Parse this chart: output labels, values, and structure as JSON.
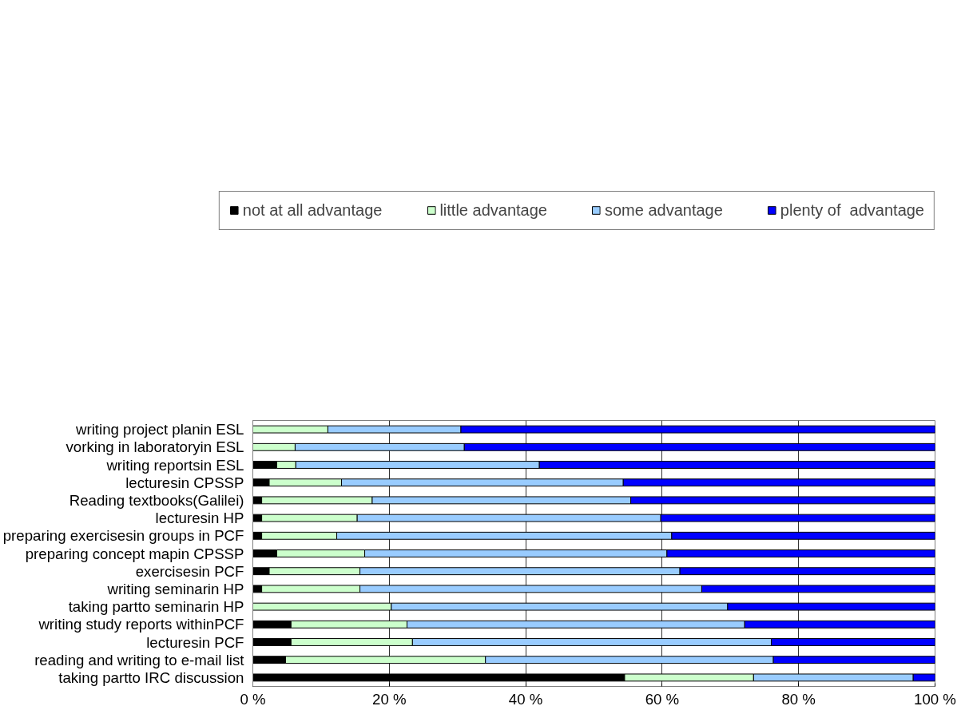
{
  "chart_data": {
    "type": "bar",
    "orientation": "horizontal",
    "stacked": true,
    "categories": [
      "writing project planin ESL",
      "vorking in laboratoryin ESL",
      "writing reportsin ESL",
      "lecturesin CPSSP",
      "Reading textbooks(Galilei)",
      "lecturesin HP",
      "preparing exercisesin groups in PCF",
      "preparing concept mapin CPSSP",
      "exercisesin PCF",
      "writing seminarin HP",
      "taking partto seminarin HP",
      "writing study reports withinPCF",
      "lecturesin PCF",
      "reading and writing to e-mail list",
      "taking partto IRC discussion"
    ],
    "series": [
      {
        "name": "not at all advantage",
        "color": "#000000",
        "values": [
          0,
          0,
          3.5,
          2.4,
          1.3,
          1.3,
          1.3,
          3.5,
          2.4,
          1.3,
          0,
          5.6,
          5.6,
          4.8,
          54.5
        ]
      },
      {
        "name": "little advantage",
        "color": "#ccffcc",
        "values": [
          11,
          6.2,
          2.8,
          10.6,
          16.2,
          14,
          11,
          12.9,
          13.3,
          14.4,
          20.3,
          17,
          17.8,
          29.3,
          18.9
        ]
      },
      {
        "name": "some advantage",
        "color": "#99ccff",
        "values": [
          19.5,
          24.8,
          35.7,
          41.3,
          37.9,
          44.5,
          49.1,
          44.3,
          46.9,
          50.1,
          49.3,
          49.5,
          52.6,
          42.2,
          23.4
        ]
      },
      {
        "name": "plenty of  advantage",
        "color": "#0000ff",
        "values": [
          69.5,
          69,
          58,
          45.7,
          44.6,
          40.2,
          38.6,
          39.3,
          37.4,
          34.2,
          30.4,
          27.9,
          24,
          23.7,
          3.2
        ]
      }
    ],
    "xlim": [
      0,
      100
    ],
    "xticks": [
      {
        "value": 0,
        "label": "0 %"
      },
      {
        "value": 20,
        "label": "20 %"
      },
      {
        "value": 40,
        "label": "40 %"
      },
      {
        "value": 60,
        "label": "60 %"
      },
      {
        "value": 80,
        "label": "80 %"
      },
      {
        "value": 100,
        "label": "100 %"
      }
    ],
    "grid": "x",
    "legend": "top"
  }
}
